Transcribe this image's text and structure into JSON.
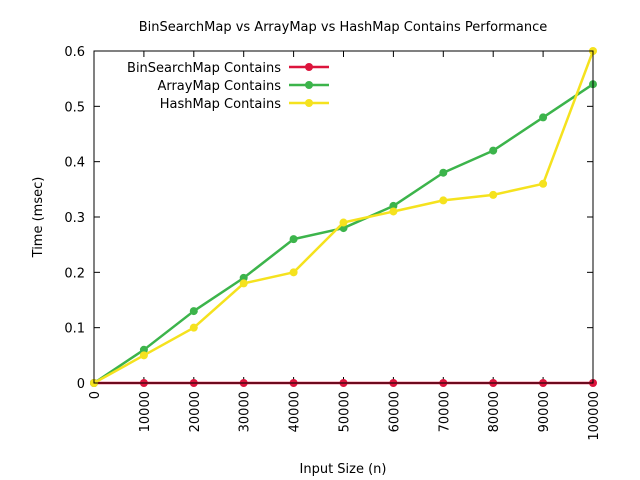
{
  "chart_data": {
    "type": "line",
    "title": "BinSearchMap vs ArrayMap vs HashMap Contains Performance",
    "xlabel": "Input Size (n)",
    "ylabel": "Time (msec)",
    "x": [
      0,
      10000,
      20000,
      30000,
      40000,
      50000,
      60000,
      70000,
      80000,
      90000,
      100000
    ],
    "x_tick_labels": [
      "0",
      "10000",
      "20000",
      "30000",
      "40000",
      "50000",
      "60000",
      "70000",
      "80000",
      "90000",
      "100000"
    ],
    "y_tick_labels": [
      "0",
      "0.1",
      "0.2",
      "0.3",
      "0.4",
      "0.5",
      "0.6"
    ],
    "y_ticks": [
      0,
      0.1,
      0.2,
      0.3,
      0.4,
      0.5,
      0.6
    ],
    "xlim": [
      0,
      100000
    ],
    "ylim": [
      0,
      0.6
    ],
    "grid": false,
    "legend_position": "top-left",
    "series": [
      {
        "name": "BinSearchMap Contains",
        "color": "#dc143c",
        "values": [
          0,
          0,
          0,
          0,
          0,
          0,
          0,
          0,
          0,
          0,
          0
        ]
      },
      {
        "name": "ArrayMap Contains",
        "color": "#3cb44b",
        "values": [
          0,
          0.06,
          0.13,
          0.19,
          0.26,
          0.28,
          0.32,
          0.38,
          0.42,
          0.48,
          0.54
        ]
      },
      {
        "name": "HashMap Contains",
        "color": "#f5e21e",
        "values": [
          0,
          0.05,
          0.1,
          0.18,
          0.2,
          0.29,
          0.31,
          0.33,
          0.34,
          0.36,
          0.6
        ]
      }
    ]
  }
}
